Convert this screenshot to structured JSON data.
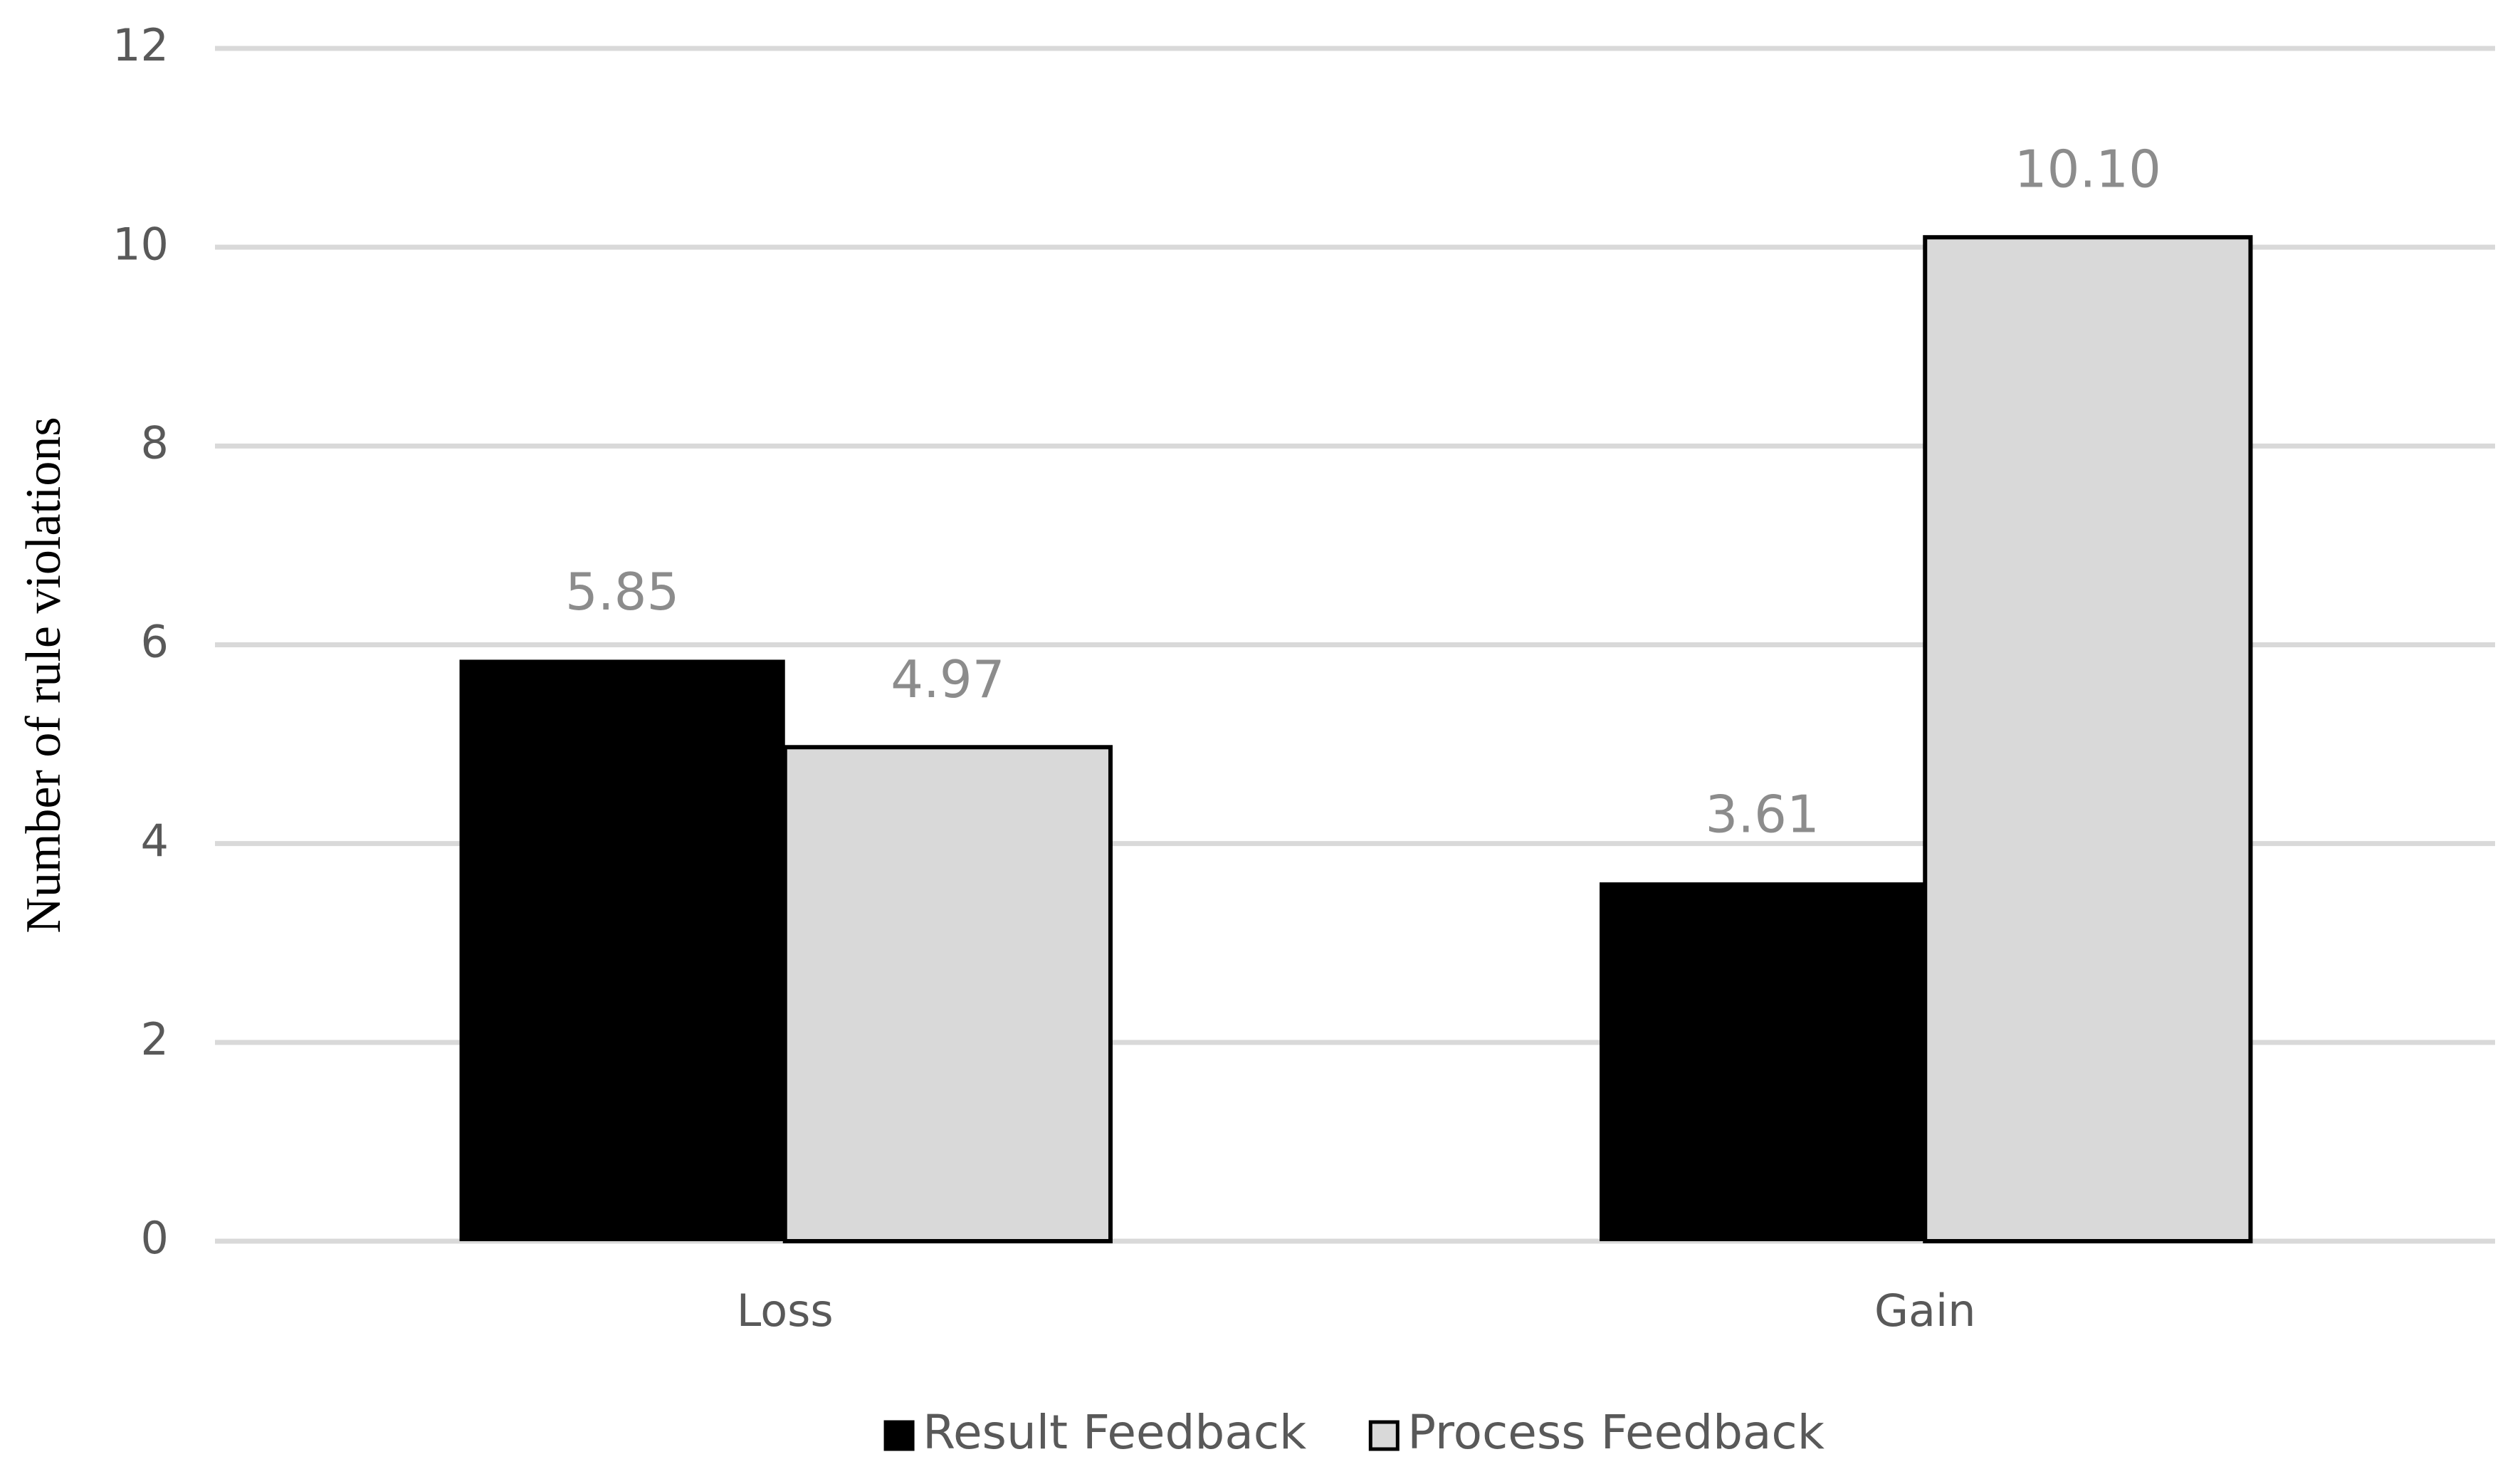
{
  "chart_data": {
    "type": "bar",
    "y_axis_label": "Number of rule violations",
    "categories": [
      "Loss",
      "Gain"
    ],
    "series": [
      {
        "name": "Result Feedback",
        "color": "#000000",
        "values": [
          5.85,
          3.61
        ]
      },
      {
        "name": "Process Feedback",
        "color": "#d9d9d9",
        "values": [
          4.97,
          10.1
        ],
        "value_labels": [
          "4.97",
          "10.10"
        ]
      }
    ],
    "ylim": [
      0,
      12
    ],
    "yticks": [
      0,
      2,
      4,
      6,
      8,
      10,
      12
    ],
    "grid": true,
    "legend": "bottom"
  }
}
